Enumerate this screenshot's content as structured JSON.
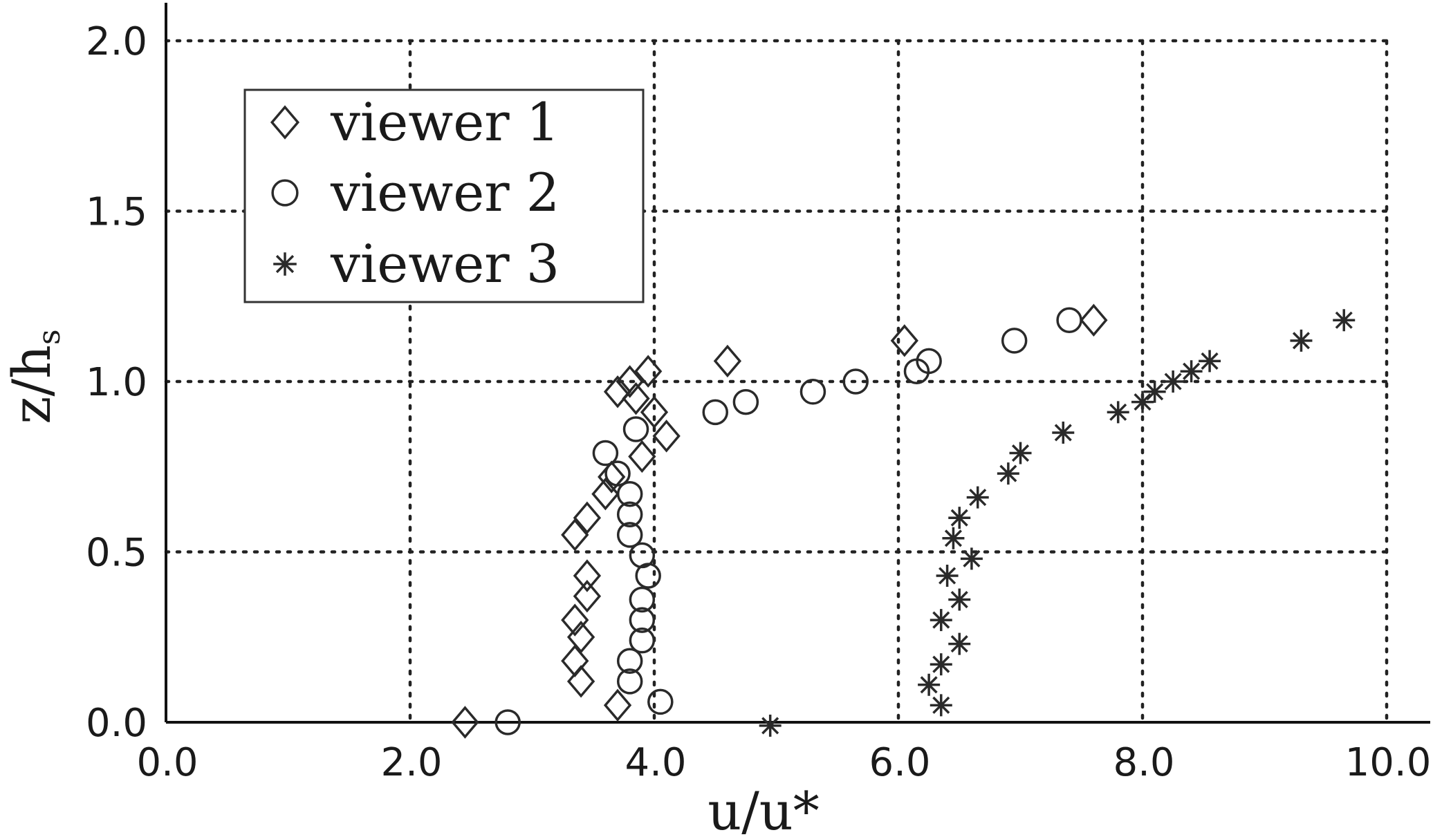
{
  "chart_data": {
    "type": "scatter",
    "title": "",
    "xlabel": "u/u*",
    "ylabel_main": "z/h",
    "ylabel_sub": "s",
    "xlim": [
      0,
      10.2
    ],
    "ylim": [
      0,
      2.1
    ],
    "xticks": [
      0,
      2,
      4,
      6,
      8,
      10
    ],
    "yticks": [
      0,
      0.5,
      1.0,
      1.5,
      2.0
    ],
    "xtick_labels": [
      "0.0",
      "2.0",
      "4.0",
      "6.0",
      "8.0",
      "10.0"
    ],
    "ytick_labels": [
      "0.0",
      "0.5",
      "1.0",
      "1.5",
      "2.0"
    ],
    "grid": true,
    "legend_position": "top-left",
    "series": [
      {
        "name": "viewer 1",
        "marker": "diamond",
        "color": "#2a2a2a",
        "points": [
          [
            2.45,
            0.0
          ],
          [
            3.7,
            0.05
          ],
          [
            3.4,
            0.12
          ],
          [
            3.35,
            0.18
          ],
          [
            3.4,
            0.25
          ],
          [
            3.35,
            0.3
          ],
          [
            3.45,
            0.37
          ],
          [
            3.45,
            0.43
          ],
          [
            3.35,
            0.55
          ],
          [
            3.45,
            0.6
          ],
          [
            3.6,
            0.67
          ],
          [
            3.65,
            0.72
          ],
          [
            3.9,
            0.78
          ],
          [
            4.1,
            0.84
          ],
          [
            4.0,
            0.91
          ],
          [
            3.85,
            0.95
          ],
          [
            3.7,
            0.97
          ],
          [
            3.8,
            1.0
          ],
          [
            3.95,
            1.03
          ],
          [
            4.6,
            1.06
          ],
          [
            6.05,
            1.12
          ],
          [
            7.6,
            1.18
          ]
        ]
      },
      {
        "name": "viewer 2",
        "marker": "circle",
        "color": "#2a2a2a",
        "points": [
          [
            2.8,
            0.0
          ],
          [
            4.05,
            0.06
          ],
          [
            3.8,
            0.12
          ],
          [
            3.8,
            0.18
          ],
          [
            3.9,
            0.24
          ],
          [
            3.9,
            0.3
          ],
          [
            3.9,
            0.36
          ],
          [
            3.95,
            0.43
          ],
          [
            3.9,
            0.49
          ],
          [
            3.8,
            0.55
          ],
          [
            3.8,
            0.61
          ],
          [
            3.8,
            0.67
          ],
          [
            3.7,
            0.73
          ],
          [
            3.6,
            0.79
          ],
          [
            3.85,
            0.86
          ],
          [
            4.5,
            0.91
          ],
          [
            4.75,
            0.94
          ],
          [
            5.3,
            0.97
          ],
          [
            5.65,
            1.0
          ],
          [
            6.15,
            1.03
          ],
          [
            6.25,
            1.06
          ],
          [
            6.95,
            1.12
          ],
          [
            7.4,
            1.18
          ]
        ]
      },
      {
        "name": "viewer 3",
        "marker": "asterisk",
        "color": "#2a2a2a",
        "points": [
          [
            4.95,
            -0.01
          ],
          [
            6.35,
            0.05
          ],
          [
            6.25,
            0.11
          ],
          [
            6.35,
            0.17
          ],
          [
            6.5,
            0.23
          ],
          [
            6.35,
            0.3
          ],
          [
            6.5,
            0.36
          ],
          [
            6.4,
            0.43
          ],
          [
            6.6,
            0.48
          ],
          [
            6.45,
            0.54
          ],
          [
            6.5,
            0.6
          ],
          [
            6.65,
            0.66
          ],
          [
            6.9,
            0.73
          ],
          [
            7.0,
            0.79
          ],
          [
            7.35,
            0.85
          ],
          [
            7.8,
            0.91
          ],
          [
            8.0,
            0.94
          ],
          [
            8.1,
            0.97
          ],
          [
            8.25,
            1.0
          ],
          [
            8.4,
            1.03
          ],
          [
            8.55,
            1.06
          ],
          [
            9.3,
            1.12
          ],
          [
            9.65,
            1.18
          ]
        ]
      }
    ]
  }
}
